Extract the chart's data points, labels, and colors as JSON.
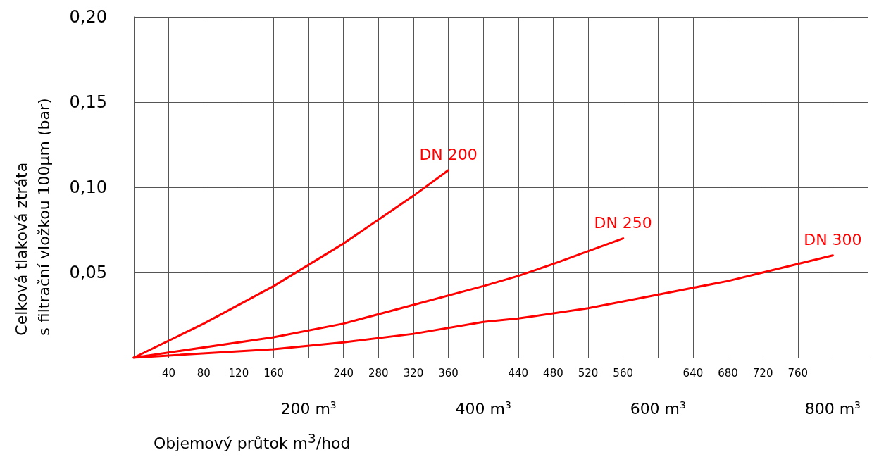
{
  "chart_data": {
    "type": "line",
    "xlabel": "Objemový průtok m$^{3}$/hod",
    "ylabel": "Celková tlaková ztráta\ns filtrační vložkou 100μm (bar)",
    "xlim": [
      0,
      840
    ],
    "ylim": [
      0,
      0.2
    ],
    "xticks": [
      {
        "value": 0,
        "label": null
      },
      40,
      80,
      120,
      160,
      {
        "value": 200,
        "label": null
      },
      240,
      280,
      320,
      360,
      {
        "value": 400,
        "label": null
      },
      440,
      480,
      520,
      560,
      {
        "value": 600,
        "label": null
      },
      640,
      680,
      720,
      760,
      {
        "value": 800,
        "label": null
      },
      {
        "value": 840,
        "label": null
      }
    ],
    "annotations": [
      "200 m$^{3}$",
      "400 m$^{3}$",
      "600 m$^{3}$",
      "800 m$^{3}$"
    ],
    "yticks": [
      {
        "value": 0,
        "label": null
      },
      {
        "value": 0.05,
        "label": "0,05"
      },
      {
        "value": 0.1,
        "label": "0,10"
      },
      {
        "value": 0.15,
        "label": "0,15"
      },
      {
        "value": 0.2,
        "label": "0,20"
      }
    ],
    "grid": true,
    "legend": false,
    "marker": "none",
    "line_style": "solid",
    "series": [
      {
        "name": "DN 200",
        "color": "#ff0000",
        "x": [
          0,
          80,
          160,
          240,
          320,
          360
        ],
        "values": [
          0,
          0.02,
          0.042,
          0.067,
          0.095,
          0.11
        ]
      },
      {
        "name": "DN 250",
        "color": "#ff0000",
        "x": [
          0,
          160,
          240,
          320,
          400,
          440,
          480,
          560
        ],
        "values": [
          0,
          0.012,
          0.02,
          0.031,
          0.042,
          0.048,
          0.055,
          0.07
        ]
      },
      {
        "name": "DN 300",
        "color": "#ff0000",
        "x": [
          0,
          160,
          240,
          320,
          400,
          440,
          520,
          600,
          680,
          720,
          800
        ],
        "values": [
          0,
          0.005,
          0.009,
          0.014,
          0.021,
          0.023,
          0.029,
          0.037,
          0.045,
          0.05,
          0.06
        ]
      }
    ]
  }
}
